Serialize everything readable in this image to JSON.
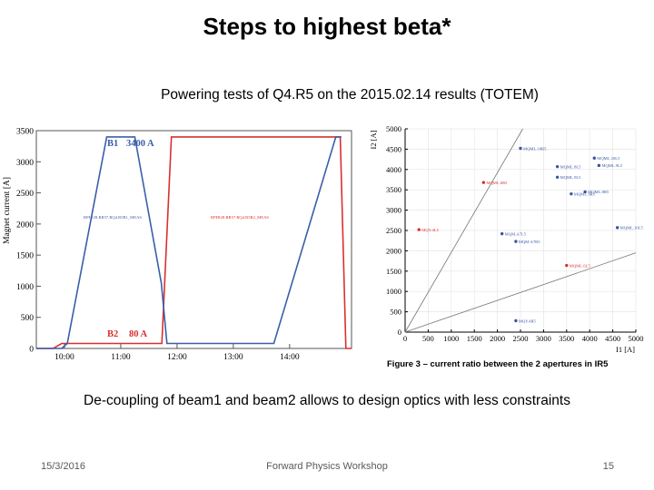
{
  "slide": {
    "title": "Steps to highest beta*",
    "subtitle": "Powering tests of Q4.R5 on the 2015.02.14 results (TOTEM)",
    "caption": "De-coupling of beam1 and beam2 allows to design optics with less constraints",
    "footer": {
      "date": "15/3/2016",
      "event": "Forward Physics Workshop",
      "page": "15"
    }
  },
  "colors": {
    "beam1": "#3b5ea8",
    "beam2": "#d83030",
    "scatter": "#3a55a0",
    "axis": "#000000"
  },
  "chart_data": [
    {
      "type": "line",
      "ylabel": "Magnet current [A]",
      "xlabel": "",
      "ylim": [
        0,
        3500
      ],
      "yticks": [
        "0",
        "500",
        "1000",
        "1500",
        "2000",
        "2500",
        "3000",
        "3500"
      ],
      "xticks": [
        "10:00",
        "11:00",
        "12:00",
        "13:00",
        "14:00"
      ],
      "legend": [
        {
          "name": "B1",
          "value": "3400 A"
        },
        {
          "name": "B2",
          "value": "80 A"
        }
      ],
      "series_labels": [
        "RPHGB.RR57.RQ4.R5B1_MEAS",
        "RPHGB.RR57.RQ4.R5B2_MEAS"
      ],
      "series": [
        {
          "name": "B1",
          "x": [
            9.5,
            9.95,
            10.05,
            10.75,
            11.25,
            11.72,
            11.82,
            12.0,
            13.72,
            14.82,
            14.92
          ],
          "y": [
            0,
            0,
            80,
            3400,
            3400,
            1050,
            80,
            80,
            80,
            3400,
            3400
          ]
        },
        {
          "name": "B2",
          "x": [
            9.5,
            9.8,
            9.95,
            10.0,
            11.7,
            11.73,
            11.9,
            12.9,
            14.45,
            14.9,
            15.0,
            15.1
          ],
          "y": [
            0,
            0,
            80,
            80,
            80,
            80,
            3400,
            3400,
            3400,
            3400,
            0,
            0
          ]
        }
      ]
    },
    {
      "type": "scatter",
      "xlabel": "I1 [A]",
      "ylabel": "I2 [A]",
      "xlim": [
        0,
        5000
      ],
      "ylim": [
        0,
        5000
      ],
      "xticks": [
        "0",
        "500",
        "1000",
        "1500",
        "2000",
        "2500",
        "3000",
        "3500",
        "4000",
        "4500",
        "5000"
      ],
      "yticks": [
        "0",
        "500",
        "1000",
        "1500",
        "2000",
        "2500",
        "3000",
        "3500",
        "4000",
        "4500",
        "5000"
      ],
      "figure_caption": "Figure 3 – current ratio between the 2 apertures in IR5",
      "points": [
        {
          "label": "MQML.10R5",
          "x": 2500,
          "y": 4520,
          "color": "blue"
        },
        {
          "label": "MQML.10L5",
          "x": 4100,
          "y": 4280,
          "color": "blue"
        },
        {
          "label": "MQML.8L5",
          "x": 3300,
          "y": 4070,
          "color": "blue"
        },
        {
          "label": "MQML.9L5",
          "x": 4200,
          "y": 4100,
          "color": "blue"
        },
        {
          "label": "MQML.9L5",
          "x": 3300,
          "y": 3810,
          "color": "blue"
        },
        {
          "label": "MQML.6R5",
          "x": 1700,
          "y": 3680,
          "color": "red"
        },
        {
          "label": "MQML.8R5",
          "x": 3900,
          "y": 3450,
          "color": "blue"
        },
        {
          "label": "MQML.9R5",
          "x": 3600,
          "y": 3400,
          "color": "blue"
        },
        {
          "label": "MQY.4L5",
          "x": 300,
          "y": 2520,
          "color": "red"
        },
        {
          "label": "MQML.10L5",
          "x": 4600,
          "y": 2570,
          "color": "blue"
        },
        {
          "label": "MQM.A7L5",
          "x": 2100,
          "y": 2420,
          "color": "blue"
        },
        {
          "label": "MQM.A7R5",
          "x": 2400,
          "y": 2230,
          "color": "blue"
        },
        {
          "label": "MQML.6L5",
          "x": 3500,
          "y": 1640,
          "color": "red"
        },
        {
          "label": "MQY.4R5",
          "x": 2400,
          "y": 280,
          "color": "blue"
        }
      ],
      "reference_lines": [
        {
          "from": [
            0,
            0
          ],
          "to": [
            2550,
            5000
          ]
        },
        {
          "from": [
            0,
            0
          ],
          "to": [
            5000,
            1950
          ]
        }
      ]
    }
  ]
}
